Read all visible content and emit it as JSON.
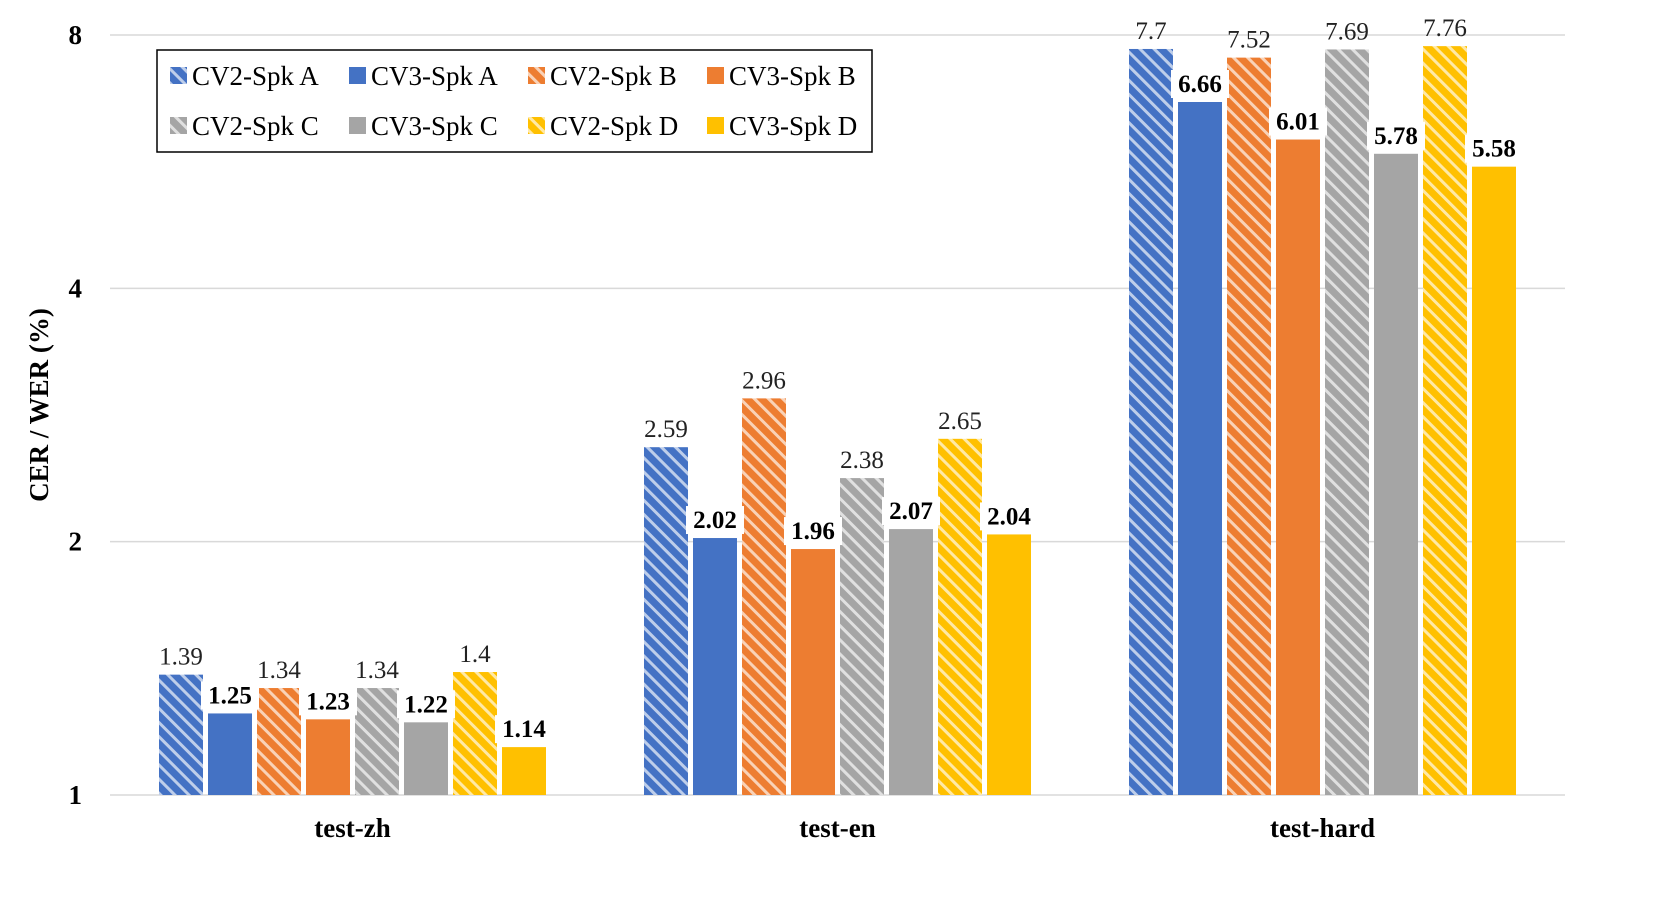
{
  "chart_data": {
    "type": "bar",
    "title": "",
    "xlabel": "",
    "ylabel": "CER / WER (%)",
    "yscale": "log2",
    "ylim": [
      1,
      8
    ],
    "yticks": [
      "1",
      "2",
      "4",
      "8"
    ],
    "categories": [
      "test-zh",
      "test-en",
      "test-hard"
    ],
    "series": [
      {
        "name": "CV2-Spk A",
        "key": "blue",
        "hatched": true,
        "bold_labels": false,
        "values": [
          1.39,
          2.59,
          7.7
        ],
        "labels": [
          "1.39",
          "2.59",
          "7.7"
        ]
      },
      {
        "name": "CV3-Spk A",
        "key": "blue",
        "hatched": false,
        "bold_labels": true,
        "values": [
          1.25,
          2.02,
          6.66
        ],
        "labels": [
          "1.25",
          "2.02",
          "6.66"
        ]
      },
      {
        "name": "CV2-Spk B",
        "key": "orange",
        "hatched": true,
        "bold_labels": false,
        "values": [
          1.34,
          2.96,
          7.52
        ],
        "labels": [
          "1.34",
          "2.96",
          "7.52"
        ]
      },
      {
        "name": "CV3-Spk B",
        "key": "orange",
        "hatched": false,
        "bold_labels": true,
        "values": [
          1.23,
          1.96,
          6.01
        ],
        "labels": [
          "1.23",
          "1.96",
          "6.01"
        ]
      },
      {
        "name": "CV2-Spk C",
        "key": "gray",
        "hatched": true,
        "bold_labels": false,
        "values": [
          1.34,
          2.38,
          7.69
        ],
        "labels": [
          "1.34",
          "2.38",
          "7.69"
        ]
      },
      {
        "name": "CV3-Spk C",
        "key": "gray",
        "hatched": false,
        "bold_labels": true,
        "values": [
          1.22,
          2.07,
          5.78
        ],
        "labels": [
          "1.22",
          "2.07",
          "5.78"
        ]
      },
      {
        "name": "CV2-Spk D",
        "key": "gold",
        "hatched": true,
        "bold_labels": false,
        "values": [
          1.4,
          2.65,
          7.76
        ],
        "labels": [
          "1.4",
          "2.65",
          "7.76"
        ]
      },
      {
        "name": "CV3-Spk D",
        "key": "gold",
        "hatched": false,
        "bold_labels": true,
        "values": [
          1.14,
          2.04,
          5.58
        ],
        "labels": [
          "1.14",
          "2.04",
          "5.58"
        ]
      }
    ],
    "colors": {
      "blue": "#4472C4",
      "orange": "#ED7D31",
      "gray": "#A5A5A5",
      "gold": "#FFC000"
    },
    "legend": {
      "placement": "top-left",
      "columns": 4
    },
    "grid": true
  }
}
